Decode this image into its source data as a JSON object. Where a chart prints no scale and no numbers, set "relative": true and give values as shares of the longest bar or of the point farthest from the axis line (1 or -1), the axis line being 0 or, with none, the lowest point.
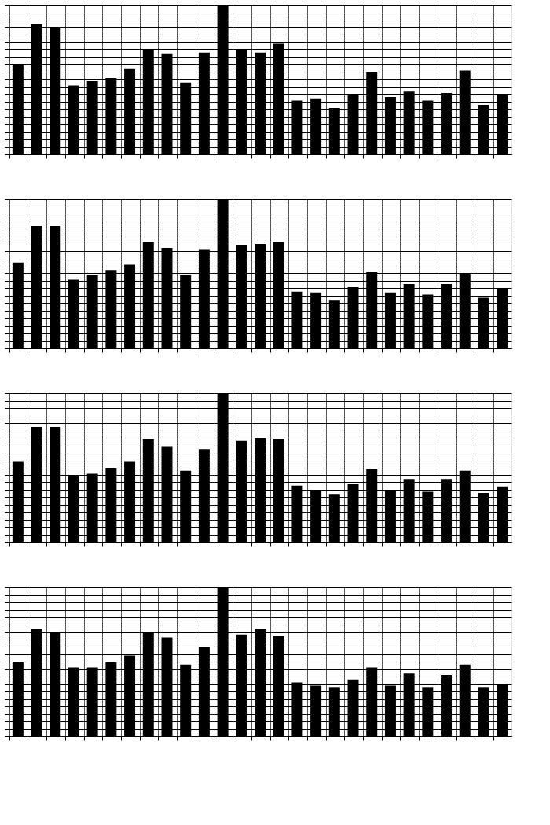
{
  "chart_data": [
    {
      "type": "bar",
      "relative": true,
      "grid": true,
      "tick_labels": false,
      "color": "#000000",
      "categories": [
        null,
        null,
        null,
        null,
        null,
        null,
        null,
        null,
        null,
        null,
        null,
        null,
        null,
        null,
        null,
        null,
        null,
        null,
        null,
        null,
        null,
        null,
        null,
        null,
        null,
        null,
        null
      ],
      "values": [
        0.6,
        0.87,
        0.85,
        0.46,
        0.49,
        0.51,
        0.57,
        0.7,
        0.67,
        0.48,
        0.68,
        1,
        0.7,
        0.68,
        0.74,
        0.36,
        0.37,
        0.31,
        0.4,
        0.55,
        0.38,
        0.42,
        0.36,
        0.41,
        0.56,
        0.33,
        0.4
      ]
    },
    {
      "type": "bar",
      "relative": true,
      "grid": true,
      "tick_labels": false,
      "color": "#000000",
      "categories": [
        null,
        null,
        null,
        null,
        null,
        null,
        null,
        null,
        null,
        null,
        null,
        null,
        null,
        null,
        null,
        null,
        null,
        null,
        null,
        null,
        null,
        null,
        null,
        null,
        null,
        null,
        null
      ],
      "values": [
        0.57,
        0.82,
        0.82,
        0.46,
        0.49,
        0.52,
        0.56,
        0.71,
        0.67,
        0.49,
        0.66,
        1,
        0.69,
        0.7,
        0.71,
        0.38,
        0.37,
        0.32,
        0.41,
        0.51,
        0.37,
        0.43,
        0.36,
        0.43,
        0.5,
        0.34,
        0.4
      ]
    },
    {
      "type": "bar",
      "relative": true,
      "grid": true,
      "tick_labels": false,
      "color": "#000000",
      "categories": [
        null,
        null,
        null,
        null,
        null,
        null,
        null,
        null,
        null,
        null,
        null,
        null,
        null,
        null,
        null,
        null,
        null,
        null,
        null,
        null,
        null,
        null,
        null,
        null,
        null,
        null,
        null
      ],
      "values": [
        0.54,
        0.77,
        0.77,
        0.45,
        0.46,
        0.5,
        0.54,
        0.69,
        0.64,
        0.48,
        0.62,
        1,
        0.68,
        0.7,
        0.69,
        0.38,
        0.35,
        0.32,
        0.39,
        0.49,
        0.35,
        0.42,
        0.34,
        0.42,
        0.48,
        0.33,
        0.37
      ]
    },
    {
      "type": "bar",
      "relative": true,
      "grid": true,
      "tick_labels": false,
      "color": "#000000",
      "categories": [
        null,
        null,
        null,
        null,
        null,
        null,
        null,
        null,
        null,
        null,
        null,
        null,
        null,
        null,
        null,
        null,
        null,
        null,
        null,
        null,
        null,
        null,
        null,
        null,
        null,
        null,
        null
      ],
      "values": [
        0.5,
        0.72,
        0.7,
        0.46,
        0.46,
        0.5,
        0.54,
        0.7,
        0.66,
        0.48,
        0.6,
        1,
        0.68,
        0.72,
        0.67,
        0.36,
        0.34,
        0.33,
        0.38,
        0.46,
        0.34,
        0.42,
        0.33,
        0.41,
        0.48,
        0.33,
        0.35
      ]
    }
  ]
}
